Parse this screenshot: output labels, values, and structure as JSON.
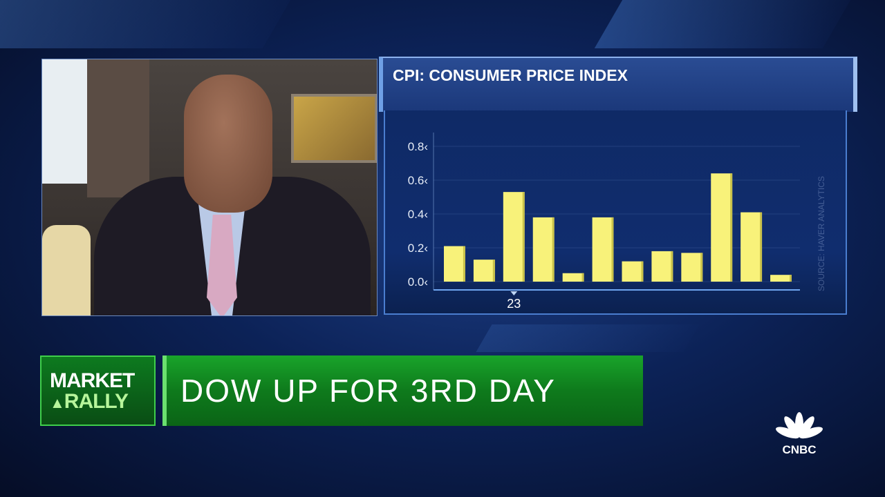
{
  "chart_data": {
    "type": "bar",
    "title": "CPI: CONSUMER PRICE INDEX",
    "categories": [
      "",
      "",
      "23",
      "",
      "",
      "",
      "",
      "",
      "",
      "",
      "",
      ""
    ],
    "values": [
      0.21,
      0.13,
      0.53,
      0.38,
      0.05,
      0.38,
      0.12,
      0.18,
      0.17,
      0.64,
      0.41,
      0.04
    ],
    "yticks": [
      "0.0",
      "0.2",
      "0.4",
      "0.6",
      "0.8"
    ],
    "ylim": [
      0,
      0.8
    ],
    "xlabel": "",
    "ylabel": "",
    "grid": true,
    "bar_color": "#f8f27a",
    "source": "SOURCE: HAVER ANALYTICS"
  },
  "lower_third": {
    "tag_line1": "MARKET",
    "tag_line2": "RALLY",
    "headline": "DOW UP FOR 3RD DAY",
    "color": "#12962a"
  },
  "network": {
    "logo": "CNBC"
  }
}
